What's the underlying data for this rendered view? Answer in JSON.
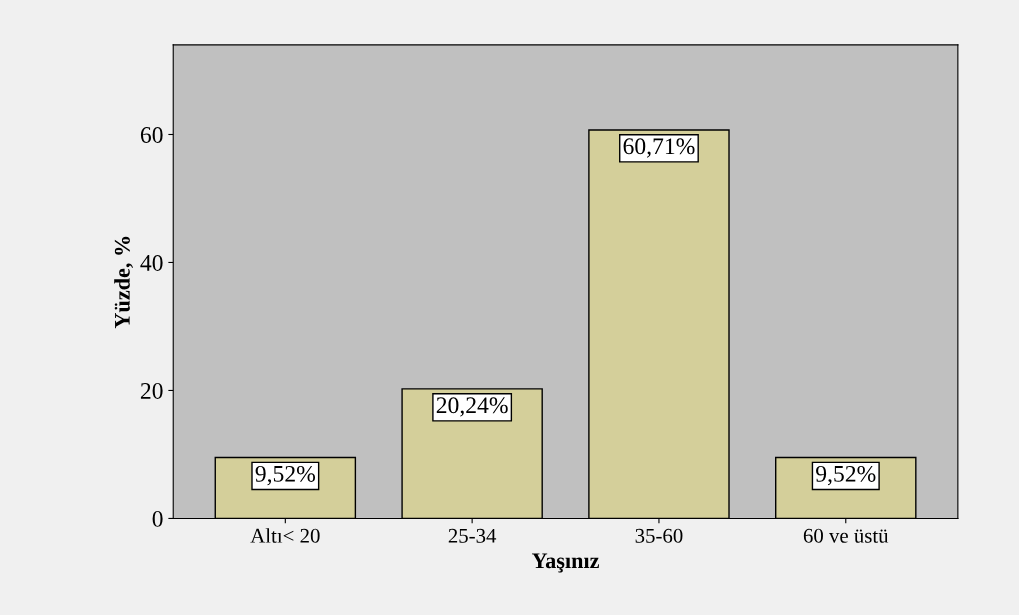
{
  "chart_data": {
    "type": "bar",
    "xlabel": "Yaşınız",
    "ylabel": "Yüzde, %",
    "categories": [
      "Altı< 20",
      "25-34",
      "35-60",
      "60 ve üstü"
    ],
    "values": [
      9.52,
      20.24,
      60.71,
      9.52
    ],
    "value_labels": [
      "9,52%",
      "20,24%",
      "60,71%",
      "9,52%"
    ],
    "color": "#d4cf9a",
    "ylim": [
      0,
      74
    ],
    "yticks": [
      0,
      20,
      40,
      60
    ],
    "grid": false
  }
}
